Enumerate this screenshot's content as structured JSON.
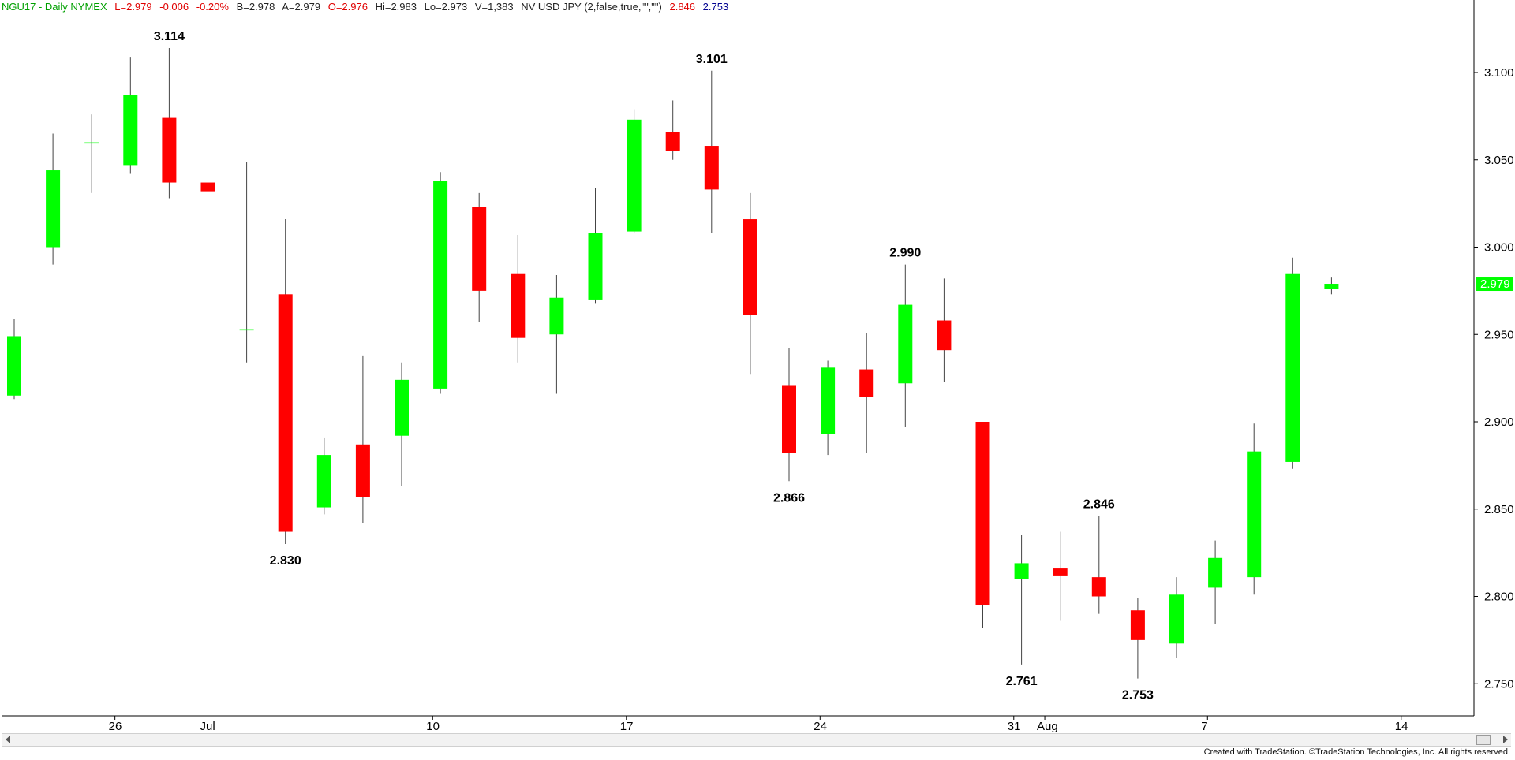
{
  "status": {
    "symbol": "NGU17 - Daily  NYMEX",
    "last": "L=2.979",
    "change": "-0.006",
    "change_pct": "-0.20%",
    "bid": "B=2.978",
    "ask": "A=2.979",
    "open": "O=2.976",
    "high": "Hi=2.983",
    "low": "Lo=2.973",
    "volume": "V=1,383",
    "extra": "NV USD JPY (2,false,true,\"\",\"\")",
    "value1": "2.846",
    "value2": "2.753"
  },
  "footer": "Created with TradeStation. ©TradeStation Technologies, Inc. All rights reserved.",
  "colors": {
    "up": "#00ff00",
    "down": "#ff0000",
    "wick": "#444444",
    "axis": "#000000",
    "price_tag": "#00ff00"
  },
  "chart_data": {
    "type": "candlestick",
    "title": "NGU17 - Daily  NYMEX",
    "ylim": [
      2.74,
      3.135
    ],
    "yticks": [
      "3.100",
      "3.050",
      "3.000",
      "2.950",
      "2.900",
      "2.850",
      "2.800",
      "2.750"
    ],
    "current_price_label": "2.979",
    "xtick_labels": [
      "26",
      "Jul",
      "10",
      "17",
      "24",
      "31",
      "Aug",
      "7",
      "14"
    ],
    "candles": [
      {
        "day": "Jun 22",
        "o": 2.915,
        "h": 2.959,
        "l": 2.913,
        "c": 2.949
      },
      {
        "day": "Jun 23",
        "o": 3.0,
        "h": 3.065,
        "l": 2.99,
        "c": 3.044
      },
      {
        "day": "Jun 26",
        "o": 3.06,
        "h": 3.076,
        "l": 3.031,
        "c": 3.06
      },
      {
        "day": "Jun 27",
        "o": 3.047,
        "h": 3.109,
        "l": 3.042,
        "c": 3.087
      },
      {
        "day": "Jun 28",
        "o": 3.074,
        "h": 3.114,
        "l": 3.028,
        "c": 3.037
      },
      {
        "day": "Jun 29",
        "o": 3.037,
        "h": 3.044,
        "l": 2.972,
        "c": 3.032
      },
      {
        "day": "Jun 30",
        "o": 2.953,
        "h": 3.049,
        "l": 2.934,
        "c": 2.953
      },
      {
        "day": "Jul 3",
        "o": 2.973,
        "h": 3.016,
        "l": 2.83,
        "c": 2.837
      },
      {
        "day": "Jul 5",
        "o": 2.851,
        "h": 2.891,
        "l": 2.847,
        "c": 2.881
      },
      {
        "day": "Jul 6",
        "o": 2.887,
        "h": 2.938,
        "l": 2.842,
        "c": 2.857
      },
      {
        "day": "Jul 7",
        "o": 2.892,
        "h": 2.934,
        "l": 2.863,
        "c": 2.924
      },
      {
        "day": "Jul 10",
        "o": 2.919,
        "h": 3.043,
        "l": 2.916,
        "c": 3.038
      },
      {
        "day": "Jul 11",
        "o": 3.023,
        "h": 3.031,
        "l": 2.957,
        "c": 2.975
      },
      {
        "day": "Jul 12",
        "o": 2.985,
        "h": 3.007,
        "l": 2.934,
        "c": 2.948
      },
      {
        "day": "Jul 13",
        "o": 2.95,
        "h": 2.984,
        "l": 2.916,
        "c": 2.971
      },
      {
        "day": "Jul 14",
        "o": 2.97,
        "h": 3.034,
        "l": 2.968,
        "c": 3.008
      },
      {
        "day": "Jul 17",
        "o": 3.009,
        "h": 3.079,
        "l": 3.008,
        "c": 3.073
      },
      {
        "day": "Jul 18",
        "o": 3.066,
        "h": 3.084,
        "l": 3.05,
        "c": 3.055
      },
      {
        "day": "Jul 19",
        "o": 3.058,
        "h": 3.101,
        "l": 3.008,
        "c": 3.033
      },
      {
        "day": "Jul 20",
        "o": 3.016,
        "h": 3.031,
        "l": 2.927,
        "c": 2.961
      },
      {
        "day": "Jul 21",
        "o": 2.921,
        "h": 2.942,
        "l": 2.866,
        "c": 2.882
      },
      {
        "day": "Jul 24",
        "o": 2.893,
        "h": 2.935,
        "l": 2.881,
        "c": 2.931
      },
      {
        "day": "Jul 25",
        "o": 2.93,
        "h": 2.951,
        "l": 2.882,
        "c": 2.914
      },
      {
        "day": "Jul 26",
        "o": 2.922,
        "h": 2.99,
        "l": 2.897,
        "c": 2.967
      },
      {
        "day": "Jul 27",
        "o": 2.958,
        "h": 2.982,
        "l": 2.923,
        "c": 2.941
      },
      {
        "day": "Jul 28",
        "o": 2.9,
        "h": 2.9,
        "l": 2.782,
        "c": 2.795
      },
      {
        "day": "Jul 31",
        "o": 2.81,
        "h": 2.835,
        "l": 2.761,
        "c": 2.819
      },
      {
        "day": "Aug 1",
        "o": 2.816,
        "h": 2.837,
        "l": 2.786,
        "c": 2.812
      },
      {
        "day": "Aug 2",
        "o": 2.811,
        "h": 2.846,
        "l": 2.79,
        "c": 2.8
      },
      {
        "day": "Aug 3",
        "o": 2.792,
        "h": 2.799,
        "l": 2.753,
        "c": 2.775
      },
      {
        "day": "Aug 4",
        "o": 2.773,
        "h": 2.811,
        "l": 2.765,
        "c": 2.801
      },
      {
        "day": "Aug 7",
        "o": 2.805,
        "h": 2.832,
        "l": 2.784,
        "c": 2.822
      },
      {
        "day": "Aug 8",
        "o": 2.811,
        "h": 2.899,
        "l": 2.801,
        "c": 2.883
      },
      {
        "day": "Aug 9",
        "o": 2.877,
        "h": 2.994,
        "l": 2.873,
        "c": 2.985
      },
      {
        "day": "Aug 10",
        "o": 2.976,
        "h": 2.983,
        "l": 2.973,
        "c": 2.979
      }
    ],
    "annotations": [
      {
        "text": "3.114",
        "candle": 4,
        "position": "above"
      },
      {
        "text": "2.830",
        "candle": 7,
        "position": "below"
      },
      {
        "text": "3.101",
        "candle": 18,
        "position": "above"
      },
      {
        "text": "2.866",
        "candle": 20,
        "position": "below"
      },
      {
        "text": "2.990",
        "candle": 23,
        "position": "above"
      },
      {
        "text": "2.761",
        "candle": 26,
        "position": "below"
      },
      {
        "text": "2.846",
        "candle": 28,
        "position": "above"
      },
      {
        "text": "2.753",
        "candle": 29,
        "position": "below"
      }
    ]
  }
}
